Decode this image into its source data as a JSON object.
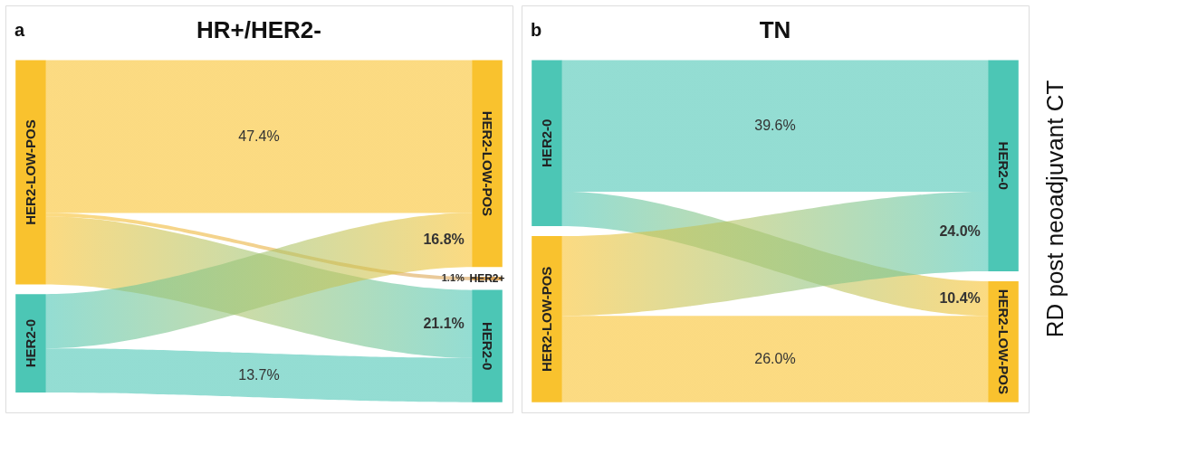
{
  "chart_data": [
    {
      "type": "other",
      "title": "HR+/HER2-",
      "annotations": [
        "a"
      ],
      "categories": [
        "HER2-LOW-POS",
        "HER2+",
        "HER2-0"
      ],
      "colors": [
        "#f9c22e",
        "#d9a45a",
        "#4cc6b5"
      ],
      "series": [
        {
          "name": "HER2-LOW-POS",
          "color": "#f9c22e",
          "values": [
            47.4,
            1.1,
            21.1
          ],
          "value_labels": [
            "47.4%",
            "1.1%",
            "21.1%"
          ]
        },
        {
          "name": "HER2-0",
          "color": "#4cc6b5",
          "values": [
            16.8,
            null,
            13.7
          ],
          "value_labels": [
            "16.8%",
            null,
            "13.7%"
          ]
        }
      ]
    },
    {
      "type": "other",
      "title": "TN",
      "annotations": [
        "b",
        "RD post neoadjuvant CT"
      ],
      "categories": [
        "HER2-0",
        "HER2-LOW-POS"
      ],
      "colors": [
        "#4cc6b5",
        "#f9c22e"
      ],
      "series": [
        {
          "name": "HER2-0",
          "color": "#4cc6b5",
          "values": [
            39.6,
            10.4
          ],
          "value_labels": [
            "39.6%",
            "10.4%"
          ]
        },
        {
          "name": "HER2-LOW-POS",
          "color": "#f9c22e",
          "values": [
            24.0,
            26.0
          ],
          "value_labels": [
            "24.0%",
            "26.0%"
          ]
        }
      ]
    }
  ]
}
